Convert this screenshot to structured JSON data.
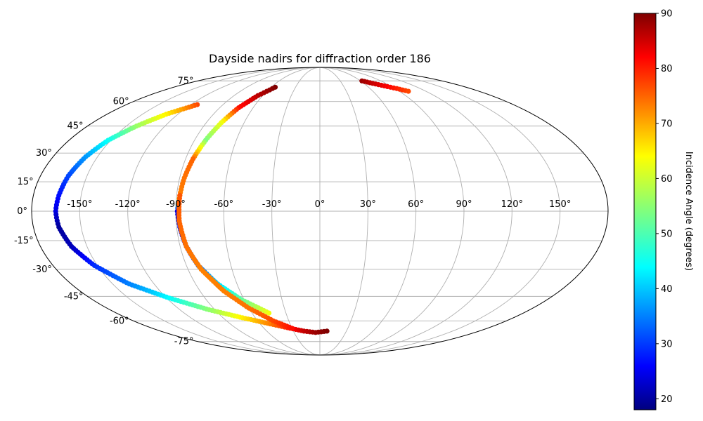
{
  "chart_data": {
    "type": "scatter",
    "projection": "mollweide",
    "title": "Dayside nadirs for diffraction order 186",
    "lon_ticks": [
      "-150°",
      "-120°",
      "-90°",
      "-60°",
      "-30°",
      "0°",
      "30°",
      "60°",
      "90°",
      "120°",
      "150°"
    ],
    "lat_ticks": [
      "75°",
      "60°",
      "45°",
      "30°",
      "15°",
      "0°",
      "-15°",
      "-30°",
      "-45°",
      "-60°",
      "-75°"
    ],
    "lon_tick_values": [
      -150,
      -120,
      -90,
      -60,
      -30,
      0,
      30,
      60,
      90,
      120,
      150
    ],
    "lat_tick_values": [
      75,
      60,
      45,
      30,
      15,
      0,
      -15,
      -30,
      -45,
      -60,
      -75
    ],
    "grid": true,
    "colormap": "jet",
    "colorbar": {
      "label": "Incidence Angle (degrees)",
      "vmin": 18,
      "vmax": 90,
      "ticks": [
        "20",
        "30",
        "40",
        "50",
        "60",
        "70",
        "80",
        "90"
      ],
      "tick_values": [
        20,
        30,
        40,
        50,
        60,
        70,
        80,
        90
      ],
      "placement": "right"
    },
    "series": [
      {
        "points": [
          {
            "lon": -114,
            "lat": 58,
            "c": 76
          },
          {
            "lon": -130,
            "lat": 52,
            "c": 64
          },
          {
            "lon": -142,
            "lat": 45,
            "c": 56
          },
          {
            "lon": -152,
            "lat": 37,
            "c": 46
          },
          {
            "lon": -158,
            "lat": 28,
            "c": 38
          },
          {
            "lon": -162,
            "lat": 18,
            "c": 32
          },
          {
            "lon": -164,
            "lat": 8,
            "c": 28
          },
          {
            "lon": -165,
            "lat": 0,
            "c": 25
          },
          {
            "lon": -164,
            "lat": -8,
            "c": 20
          },
          {
            "lon": -160,
            "lat": -18,
            "c": 22
          },
          {
            "lon": -152,
            "lat": -28,
            "c": 30
          },
          {
            "lon": -138,
            "lat": -38,
            "c": 36
          },
          {
            "lon": -118,
            "lat": -46,
            "c": 45
          },
          {
            "lon": -95,
            "lat": -53,
            "c": 55
          },
          {
            "lon": -72,
            "lat": -58,
            "c": 64
          },
          {
            "lon": -50,
            "lat": -62,
            "c": 72
          },
          {
            "lon": -32,
            "lat": -65,
            "c": 80
          },
          {
            "lon": -18,
            "lat": -67,
            "c": 85
          },
          {
            "lon": -5,
            "lat": -68,
            "c": 88
          },
          {
            "lon": 8,
            "lat": -67,
            "c": 90
          }
        ]
      },
      {
        "points": [
          {
            "lon": -55,
            "lat": 70,
            "c": 90
          },
          {
            "lon": -65,
            "lat": 64,
            "c": 86
          },
          {
            "lon": -73,
            "lat": 56,
            "c": 80
          },
          {
            "lon": -78,
            "lat": 47,
            "c": 62
          },
          {
            "lon": -82,
            "lat": 37,
            "c": 54
          },
          {
            "lon": -85,
            "lat": 27,
            "c": 74
          },
          {
            "lon": -87,
            "lat": 17,
            "c": 73
          },
          {
            "lon": -88,
            "lat": 8,
            "c": 72
          },
          {
            "lon": -89,
            "lat": 0,
            "c": 25
          },
          {
            "lon": -88,
            "lat": -8,
            "c": 24
          },
          {
            "lon": -86,
            "lat": -18,
            "c": 28
          },
          {
            "lon": -82,
            "lat": -28,
            "c": 34
          },
          {
            "lon": -74,
            "lat": -38,
            "c": 42
          },
          {
            "lon": -62,
            "lat": -47,
            "c": 52
          },
          {
            "lon": -45,
            "lat": -55,
            "c": 62
          }
        ]
      },
      {
        "points": [
          {
            "lon": -88,
            "lat": 8,
            "c": 75
          },
          {
            "lon": -88,
            "lat": -5,
            "c": 74
          },
          {
            "lon": -86,
            "lat": -18,
            "c": 73
          },
          {
            "lon": -81,
            "lat": -30,
            "c": 72
          },
          {
            "lon": -72,
            "lat": -42,
            "c": 72
          },
          {
            "lon": -60,
            "lat": -52,
            "c": 73
          },
          {
            "lon": -45,
            "lat": -60,
            "c": 76
          },
          {
            "lon": -30,
            "lat": -65,
            "c": 80
          }
        ]
      },
      {
        "points": [
          {
            "lon": 62,
            "lat": 75,
            "c": 88
          },
          {
            "lon": 72,
            "lat": 73,
            "c": 85
          },
          {
            "lon": 82,
            "lat": 71,
            "c": 82
          },
          {
            "lon": 92,
            "lat": 69,
            "c": 79
          },
          {
            "lon": 100,
            "lat": 67,
            "c": 76
          }
        ]
      }
    ]
  }
}
